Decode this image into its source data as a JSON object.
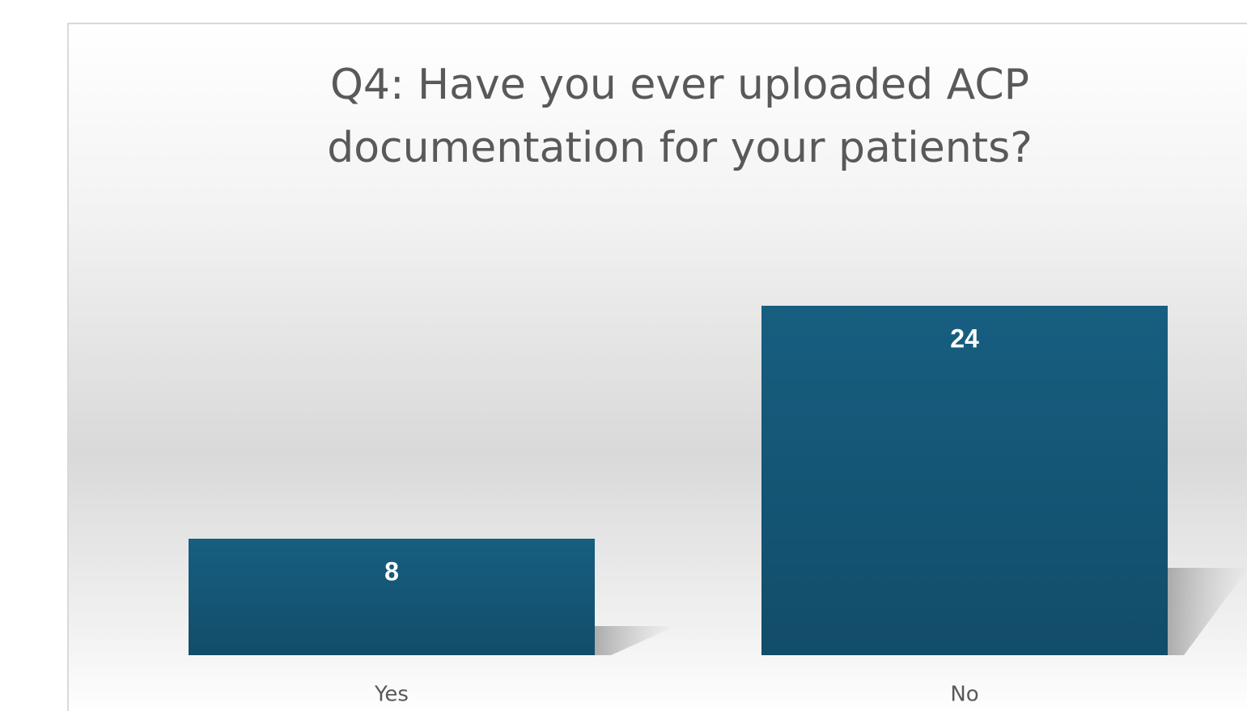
{
  "chart_data": {
    "type": "bar",
    "title": "Q4: Have you ever uploaded ACP documentation for your patients?",
    "categories": [
      "Yes",
      "No"
    ],
    "values": [
      8,
      24
    ],
    "color": "#175a7c"
  }
}
